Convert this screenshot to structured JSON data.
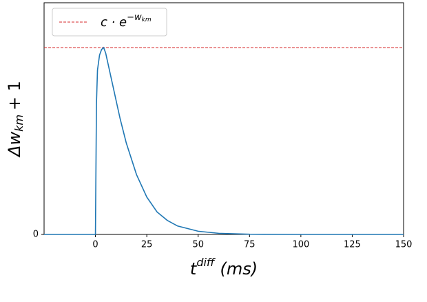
{
  "chart_data": {
    "type": "line",
    "x_label": {
      "text": "t",
      "sup": "diff",
      "after": "(ms)"
    },
    "y_label": {
      "text": "Δw",
      "sub": "km",
      "after": "+ 1"
    },
    "x": [
      -25,
      0,
      0.5,
      1,
      2,
      3,
      4,
      5,
      6,
      8,
      10,
      12,
      15,
      20,
      25,
      30,
      35,
      40,
      50,
      60,
      75,
      100,
      150
    ],
    "series": [
      {
        "color": "#1f77b4",
        "values": [
          0,
          0,
          0.7,
          0.88,
          0.96,
          0.99,
          1.0,
          0.97,
          0.92,
          0.82,
          0.72,
          0.62,
          0.49,
          0.32,
          0.2,
          0.12,
          0.075,
          0.045,
          0.017,
          0.006,
          0.001,
          0,
          0
        ]
      }
    ],
    "reference_line": {
      "value": 1,
      "color": "#d62728",
      "name": {
        "text": "c · e",
        "sup": "−w",
        "sup_sub": "km"
      }
    },
    "xlim": [
      -25,
      150
    ],
    "xticks": [
      0,
      25,
      50,
      75,
      100,
      125,
      150
    ],
    "ylim": [
      0,
      1.24
    ],
    "yticks": [
      0
    ],
    "legend": "upper left"
  }
}
